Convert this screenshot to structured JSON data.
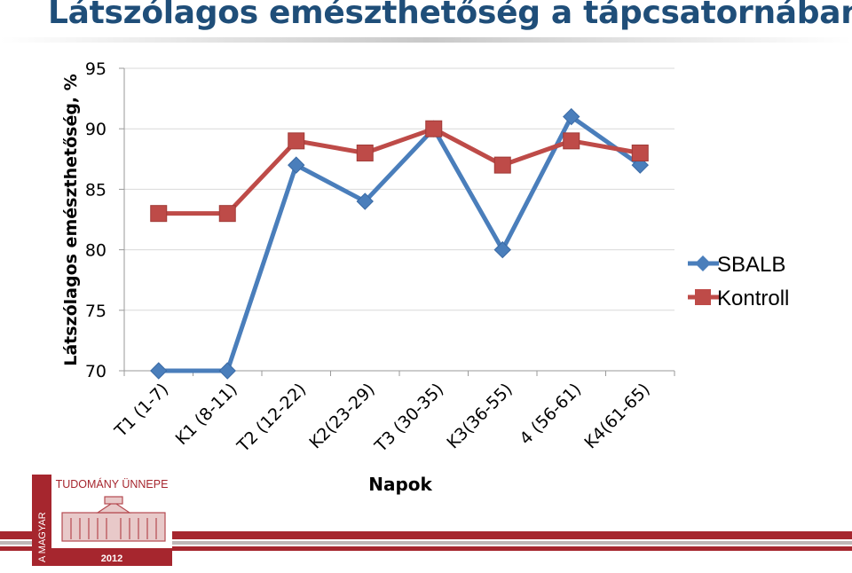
{
  "slide": {
    "title": "Látszólagos emészthetőség a tápcsatornában"
  },
  "chart_data": {
    "type": "line",
    "title": "",
    "xlabel": "Napok",
    "ylabel": "Látszólagos emészthetőség, %",
    "categories": [
      "T1 (1-7)",
      "K1 (8-11)",
      "T2 (12-22)",
      "K2(23-29)",
      "T3 (30-35)",
      "K3(36-55)",
      "4 (56-61)",
      "K4(61-65)"
    ],
    "ylim": [
      70,
      95
    ],
    "yticks": [
      70,
      75,
      80,
      85,
      90,
      95
    ],
    "grid": true,
    "legend_position": "right",
    "series": [
      {
        "name": "SBALB",
        "values": [
          70,
          70,
          87,
          84,
          90,
          80,
          91,
          87
        ],
        "color": "#4a7ebb",
        "marker": "diamond"
      },
      {
        "name": "Kontroll",
        "values": [
          83,
          83,
          89,
          88,
          90,
          87,
          89,
          88
        ],
        "color": "#be4b48",
        "marker": "square"
      }
    ]
  },
  "footer": {
    "logo_text": "TUDOMÁNY ÜNNEPE",
    "logo_side_text": "A MAGYAR",
    "logo_year": "2012",
    "brand_color": "#a6262e"
  }
}
